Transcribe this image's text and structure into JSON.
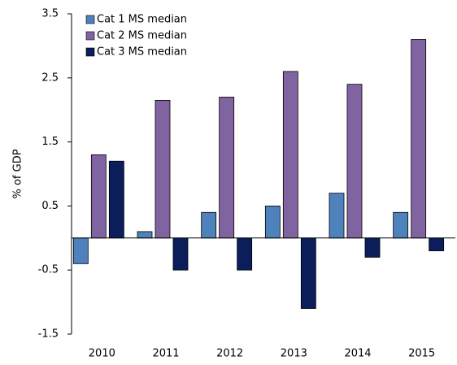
{
  "chart_data": {
    "type": "bar",
    "y_label": "% of GDP",
    "categories": [
      "2010",
      "2011",
      "2012",
      "2013",
      "2014",
      "2015"
    ],
    "series": [
      {
        "name": "Cat 1 MS median",
        "color": "#4f81bd",
        "values": [
          -0.4,
          0.1,
          0.4,
          0.5,
          0.7,
          0.4
        ]
      },
      {
        "name": "Cat 2 MS median",
        "color": "#8064a2",
        "values": [
          1.3,
          2.15,
          2.2,
          2.6,
          2.4,
          3.1
        ]
      },
      {
        "name": "Cat 3 MS median",
        "color": "#0c1d5c",
        "values": [
          1.2,
          -0.5,
          -0.5,
          -1.1,
          -0.3,
          -0.2
        ]
      }
    ],
    "ylim": [
      -1.5,
      3.5
    ],
    "yticks": [
      -1.5,
      -0.5,
      0.5,
      1.5,
      2.5,
      3.5
    ],
    "grid": false,
    "legend": "top-left"
  }
}
